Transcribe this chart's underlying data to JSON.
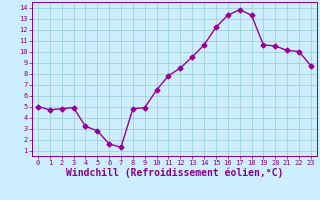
{
  "x": [
    0,
    1,
    2,
    3,
    4,
    5,
    6,
    7,
    8,
    9,
    10,
    11,
    12,
    13,
    14,
    15,
    16,
    17,
    18,
    19,
    20,
    21,
    22,
    23
  ],
  "y": [
    5.0,
    4.7,
    4.8,
    4.9,
    3.2,
    2.8,
    1.6,
    1.3,
    4.8,
    4.9,
    6.5,
    7.8,
    8.5,
    9.5,
    10.6,
    12.2,
    13.3,
    13.8,
    13.3,
    10.6,
    10.5,
    10.1,
    10.0,
    8.7
  ],
  "line_color": "#990099",
  "marker": "D",
  "markersize": 2.5,
  "linewidth": 1.0,
  "xlabel": "Windchill (Refroidissement éolien,°C)",
  "xlabel_fontsize": 7.0,
  "bg_color": "#cceeff",
  "grid_color": "#99cccc",
  "tick_color": "#880088",
  "label_color": "#880088",
  "spine_color": "#880088",
  "xlim": [
    -0.5,
    23.5
  ],
  "ylim": [
    0.5,
    14.5
  ],
  "xtick_labels": [
    "0",
    "1",
    "2",
    "3",
    "4",
    "5",
    "6",
    "7",
    "8",
    "9",
    "10",
    "11",
    "12",
    "13",
    "14",
    "15",
    "16",
    "17",
    "18",
    "19",
    "20",
    "21",
    "22",
    "23"
  ],
  "xticks": [
    0,
    1,
    2,
    3,
    4,
    5,
    6,
    7,
    8,
    9,
    10,
    11,
    12,
    13,
    14,
    15,
    16,
    17,
    18,
    19,
    20,
    21,
    22,
    23
  ],
  "yticks": [
    1,
    2,
    3,
    4,
    5,
    6,
    7,
    8,
    9,
    10,
    11,
    12,
    13,
    14
  ]
}
